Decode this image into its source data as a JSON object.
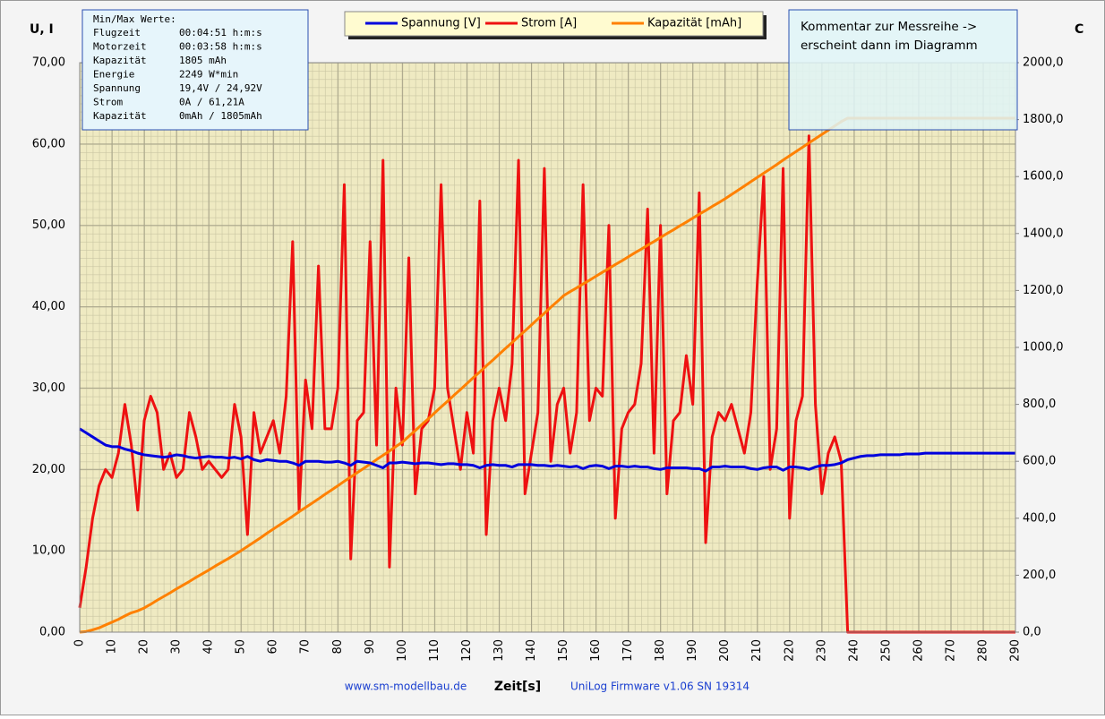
{
  "chart_data": {
    "type": "line",
    "y_label": "U, I",
    "y2_label": "C",
    "x_label": "Zeit[s]",
    "footer_left": "www.sm-modellbau.de",
    "footer_right": "UniLog Firmware  v1.06 SN 19314",
    "info_title": "Min/Max Werte:",
    "info_rows": [
      [
        "Flugzeit",
        "00:04:51 h:m:s"
      ],
      [
        "Motorzeit",
        "00:03:58 h:m:s"
      ],
      [
        "Kapazität",
        "1805 mAh"
      ],
      [
        "Energie",
        "2249 W*min"
      ],
      [
        "Spannung",
        "19,4V / 24,92V"
      ],
      [
        "Strom",
        "0A / 61,21A"
      ],
      [
        "Kapazität",
        "0mAh / 1805mAh"
      ]
    ],
    "comment": [
      "Kommentar zur Messreihe  ->",
      "erscheint dann im Diagramm"
    ],
    "grid": true,
    "xlim": [
      0,
      290
    ],
    "xticks": [
      0,
      10,
      20,
      30,
      40,
      50,
      60,
      70,
      80,
      90,
      100,
      110,
      120,
      130,
      140,
      150,
      160,
      170,
      180,
      190,
      200,
      210,
      220,
      230,
      240,
      250,
      260,
      270,
      280,
      290
    ],
    "ylim": [
      0,
      70
    ],
    "yticks": [
      {
        "value": 0,
        "label": "0,00"
      },
      {
        "value": 10,
        "label": "10,00"
      },
      {
        "value": 20,
        "label": "20,00"
      },
      {
        "value": 30,
        "label": "30,00"
      },
      {
        "value": 40,
        "label": "40,00"
      },
      {
        "value": 50,
        "label": "50,00"
      },
      {
        "value": 60,
        "label": "60,00"
      },
      {
        "value": 70,
        "label": "70,00"
      }
    ],
    "y2lim": [
      0,
      2000
    ],
    "y2ticks": [
      {
        "value": 0,
        "label": "0,0"
      },
      {
        "value": 200,
        "label": "200,0"
      },
      {
        "value": 400,
        "label": "400,0"
      },
      {
        "value": 600,
        "label": "600,0"
      },
      {
        "value": 800,
        "label": "800,0"
      },
      {
        "value": 1000,
        "label": "1000,0"
      },
      {
        "value": 1200,
        "label": "1200,0"
      },
      {
        "value": 1400,
        "label": "1400,0"
      },
      {
        "value": 1600,
        "label": "1600,0"
      },
      {
        "value": 1800,
        "label": "1800,0"
      },
      {
        "value": 2000,
        "label": "2000,0"
      }
    ],
    "x": [
      0,
      2,
      4,
      6,
      8,
      10,
      12,
      14,
      16,
      18,
      20,
      22,
      24,
      26,
      28,
      30,
      32,
      34,
      36,
      38,
      40,
      42,
      44,
      46,
      48,
      50,
      52,
      54,
      56,
      58,
      60,
      62,
      64,
      66,
      68,
      70,
      72,
      74,
      76,
      78,
      80,
      82,
      84,
      86,
      88,
      90,
      92,
      94,
      96,
      98,
      100,
      102,
      104,
      106,
      108,
      110,
      112,
      114,
      116,
      118,
      120,
      122,
      124,
      126,
      128,
      130,
      132,
      134,
      136,
      138,
      140,
      142,
      144,
      146,
      148,
      150,
      152,
      154,
      156,
      158,
      160,
      162,
      164,
      166,
      168,
      170,
      172,
      174,
      176,
      178,
      180,
      182,
      184,
      186,
      188,
      190,
      192,
      194,
      196,
      198,
      200,
      202,
      204,
      206,
      208,
      210,
      212,
      214,
      216,
      218,
      220,
      222,
      224,
      226,
      228,
      230,
      232,
      234,
      236,
      238,
      240,
      242,
      244,
      246,
      248,
      250,
      252,
      254,
      256,
      258,
      260,
      262,
      264,
      266,
      268,
      270,
      272,
      274,
      276,
      278,
      280,
      282,
      284,
      286,
      288,
      290
    ],
    "series": [
      {
        "name": "Spannung [V]",
        "color": "#0000dd",
        "values": [
          25,
          24.5,
          24,
          23.5,
          23,
          22.8,
          22.8,
          22.5,
          22.3,
          22,
          21.8,
          21.7,
          21.6,
          21.5,
          21.6,
          21.8,
          21.7,
          21.5,
          21.4,
          21.5,
          21.6,
          21.5,
          21.5,
          21.4,
          21.5,
          21.3,
          21.6,
          21.2,
          21,
          21.2,
          21.1,
          21,
          21,
          20.8,
          20.5,
          21,
          21,
          21,
          20.9,
          20.9,
          21,
          20.8,
          20.5,
          21,
          20.9,
          20.8,
          20.5,
          20.2,
          20.8,
          20.8,
          20.9,
          20.8,
          20.7,
          20.8,
          20.8,
          20.7,
          20.6,
          20.7,
          20.7,
          20.6,
          20.6,
          20.5,
          20.2,
          20.5,
          20.6,
          20.5,
          20.5,
          20.3,
          20.6,
          20.6,
          20.6,
          20.5,
          20.5,
          20.4,
          20.5,
          20.4,
          20.3,
          20.4,
          20.1,
          20.4,
          20.5,
          20.4,
          20.1,
          20.4,
          20.4,
          20.3,
          20.4,
          20.3,
          20.3,
          20.1,
          20,
          20.2,
          20.2,
          20.2,
          20.2,
          20.1,
          20.1,
          19.8,
          20.3,
          20.3,
          20.4,
          20.3,
          20.3,
          20.3,
          20.1,
          20,
          20.2,
          20.3,
          20.3,
          19.9,
          20.3,
          20.3,
          20.2,
          20,
          20.3,
          20.5,
          20.5,
          20.6,
          20.8,
          21.2,
          21.4,
          21.6,
          21.7,
          21.7,
          21.8,
          21.8,
          21.8,
          21.8,
          21.9,
          21.9,
          21.9,
          22,
          22,
          22,
          22,
          22,
          22,
          22,
          22,
          22,
          22,
          22,
          22,
          22,
          22,
          22
        ]
      },
      {
        "name": "Strom [A]",
        "color": "#ee1111",
        "values": [
          3,
          8,
          14,
          18,
          20,
          19,
          22,
          28,
          23,
          15,
          26,
          29,
          27,
          20,
          22,
          19,
          20,
          27,
          24,
          20,
          21,
          20,
          19,
          20,
          28,
          24,
          12,
          27,
          22,
          24,
          26,
          22,
          29,
          48,
          15,
          31,
          25,
          45,
          25,
          25,
          30,
          55,
          9,
          26,
          27,
          48,
          23,
          58,
          8,
          30,
          23,
          46,
          17,
          25,
          26,
          30,
          55,
          30,
          25,
          20,
          27,
          22,
          53,
          12,
          26,
          30,
          26,
          33,
          58,
          17,
          22,
          27,
          57,
          21,
          28,
          30,
          22,
          27,
          55,
          26,
          30,
          29,
          50,
          14,
          25,
          27,
          28,
          33,
          52,
          22,
          50,
          17,
          26,
          27,
          34,
          28,
          54,
          11,
          24,
          27,
          26,
          28,
          25,
          22,
          27,
          43,
          56,
          20,
          25,
          57,
          14,
          26,
          29,
          61,
          28,
          17,
          22,
          24,
          21,
          0,
          0,
          0,
          0,
          0,
          0,
          0,
          0,
          0,
          0,
          0,
          0,
          0,
          0,
          0,
          0,
          0,
          0,
          0,
          0,
          0,
          0,
          0,
          0,
          0,
          0,
          0
        ]
      },
      {
        "name": "Kapazität [mAh]",
        "color": "#ff8000",
        "axis": "y2",
        "values": [
          0,
          2,
          8,
          15,
          25,
          35,
          45,
          57,
          68,
          75,
          85,
          98,
          112,
          125,
          138,
          152,
          165,
          178,
          192,
          205,
          218,
          232,
          245,
          258,
          272,
          286,
          301,
          316,
          331,
          347,
          362,
          377,
          392,
          407,
          423,
          438,
          453,
          468,
          484,
          499,
          514,
          530,
          545,
          560,
          575,
          590,
          606,
          621,
          636,
          652,
          667,
          688,
          708,
          729,
          749,
          770,
          791,
          811,
          832,
          852,
          873,
          894,
          914,
          935,
          955,
          976,
          997,
          1017,
          1038,
          1058,
          1079,
          1100,
          1120,
          1141,
          1161,
          1182,
          1196,
          1209,
          1223,
          1236,
          1250,
          1264,
          1277,
          1291,
          1304,
          1318,
          1332,
          1345,
          1359,
          1372,
          1386,
          1400,
          1413,
          1427,
          1440,
          1454,
          1468,
          1481,
          1495,
          1508,
          1522,
          1537,
          1552,
          1567,
          1582,
          1597,
          1612,
          1627,
          1642,
          1658,
          1673,
          1688,
          1703,
          1718,
          1733,
          1748,
          1763,
          1778,
          1793,
          1805,
          1805,
          1805,
          1805,
          1805,
          1805,
          1805,
          1805,
          1805,
          1805,
          1805,
          1805,
          1805,
          1805,
          1805,
          1805,
          1805,
          1805,
          1805,
          1805,
          1805,
          1805,
          1805,
          1805,
          1805,
          1805,
          1805
        ]
      }
    ]
  }
}
